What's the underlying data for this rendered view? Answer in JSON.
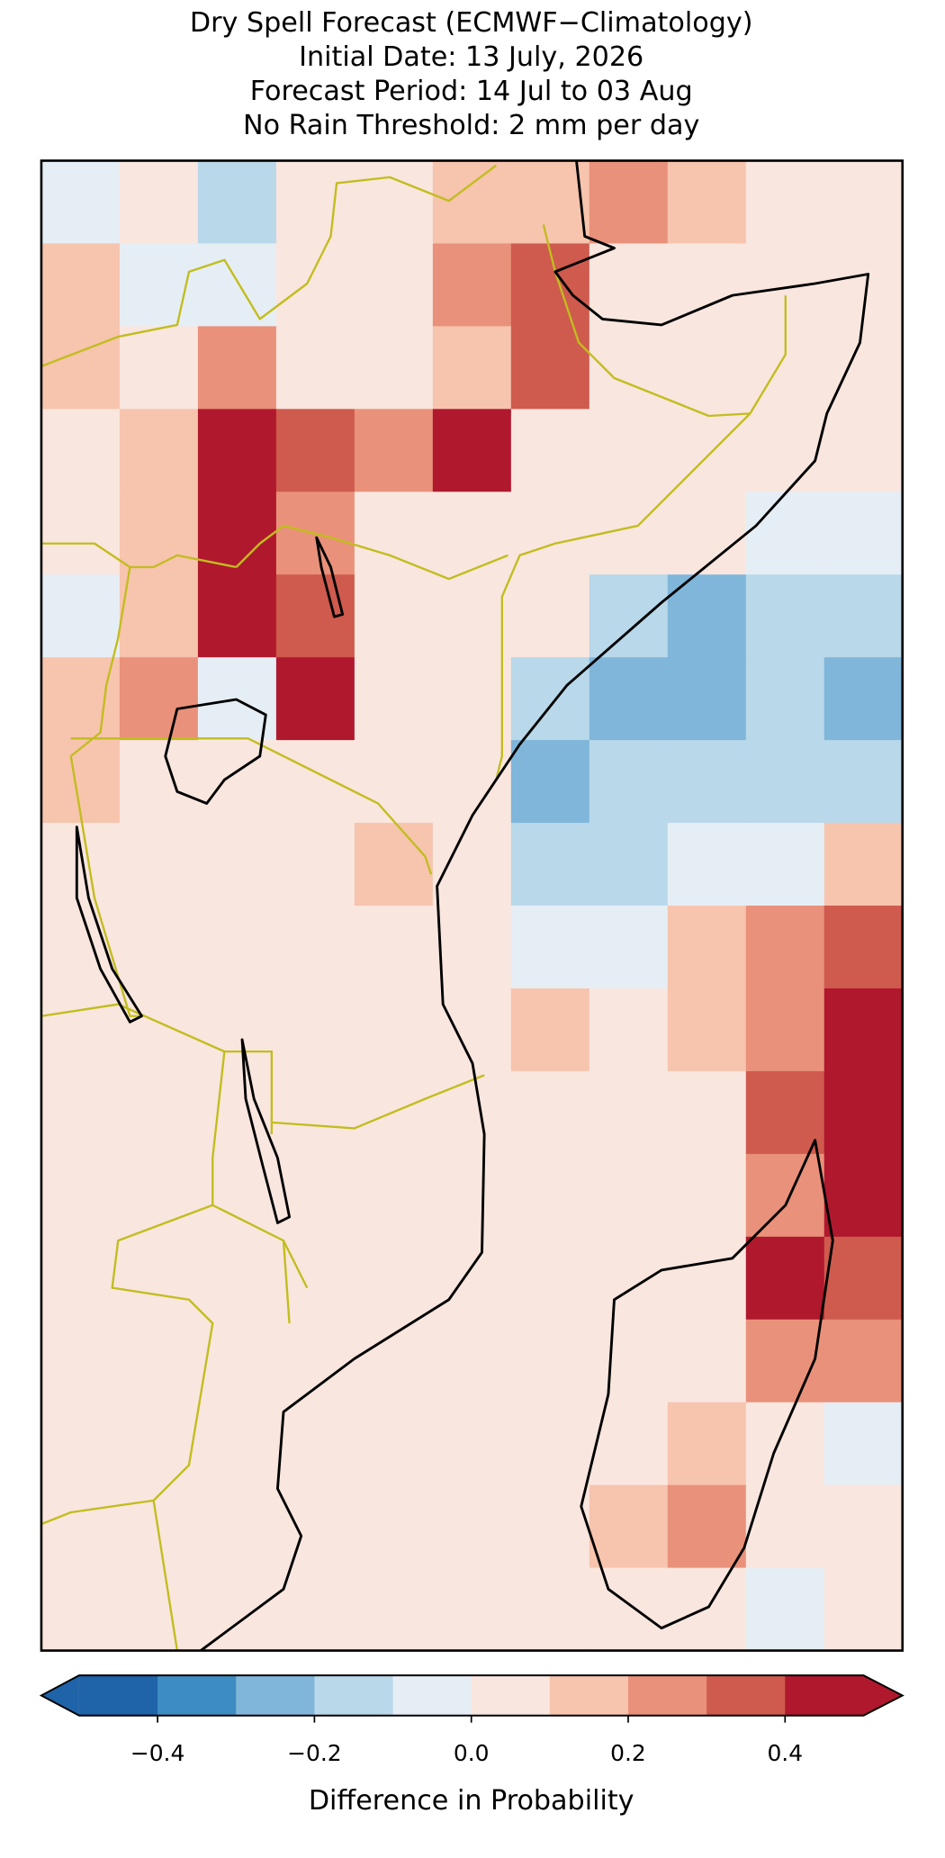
{
  "chart_data": {
    "type": "heatmap",
    "title": [
      "Dry Spell Forecast (ECMWF−Climatology)",
      "Initial Date: 13 July, 2026",
      "Forecast Period: 14 Jul to 03 Aug",
      "No Rain Threshold: 2 mm per day"
    ],
    "values": [
      [
        -0.05,
        0.05,
        -0.15,
        0.05,
        0.05,
        0.15,
        0.15,
        0.25,
        0.15,
        0.05,
        0.05
      ],
      [
        0.15,
        -0.05,
        -0.05,
        0.05,
        0.05,
        0.25,
        0.35,
        0.05,
        0.05,
        0.05,
        0.05
      ],
      [
        0.15,
        0.05,
        0.25,
        0.05,
        0.05,
        0.15,
        0.35,
        0.05,
        0.05,
        0.05,
        0.05
      ],
      [
        0.05,
        0.15,
        0.45,
        0.35,
        0.25,
        0.45,
        0.05,
        0.05,
        0.05,
        0.05,
        0.05
      ],
      [
        0.05,
        0.15,
        0.45,
        0.25,
        0.05,
        0.05,
        0.05,
        0.05,
        0.05,
        -0.05,
        -0.05
      ],
      [
        -0.05,
        0.15,
        0.45,
        0.35,
        0.05,
        0.05,
        0.05,
        -0.15,
        -0.25,
        -0.15,
        -0.15
      ],
      [
        0.15,
        0.25,
        -0.05,
        0.45,
        0.05,
        0.05,
        -0.15,
        -0.25,
        -0.25,
        -0.15,
        -0.25
      ],
      [
        0.15,
        0.05,
        0.05,
        0.05,
        0.05,
        0.05,
        -0.25,
        -0.15,
        -0.15,
        -0.15,
        -0.15
      ],
      [
        0.05,
        0.05,
        0.05,
        0.05,
        0.15,
        0.05,
        -0.15,
        -0.15,
        -0.05,
        -0.05,
        0.15
      ],
      [
        0.05,
        0.05,
        0.05,
        0.05,
        0.05,
        0.05,
        -0.05,
        -0.05,
        0.15,
        0.25,
        0.35
      ],
      [
        0.05,
        0.05,
        0.05,
        0.05,
        0.05,
        0.05,
        0.15,
        0.05,
        0.15,
        0.25,
        0.45
      ],
      [
        0.05,
        0.05,
        0.05,
        0.05,
        0.05,
        0.05,
        0.05,
        0.05,
        0.05,
        0.35,
        0.45
      ],
      [
        0.05,
        0.05,
        0.05,
        0.05,
        0.05,
        0.05,
        0.05,
        0.05,
        0.05,
        0.25,
        0.45
      ],
      [
        0.05,
        0.05,
        0.05,
        0.05,
        0.05,
        0.05,
        0.05,
        0.05,
        0.05,
        0.45,
        0.35
      ],
      [
        0.05,
        0.05,
        0.05,
        0.05,
        0.05,
        0.05,
        0.05,
        0.05,
        0.05,
        0.25,
        0.25
      ],
      [
        0.05,
        0.05,
        0.05,
        0.05,
        0.05,
        0.05,
        0.05,
        0.05,
        0.15,
        0.05,
        -0.05
      ],
      [
        0.05,
        0.05,
        0.05,
        0.05,
        0.05,
        0.05,
        0.05,
        0.15,
        0.25,
        0.05,
        0.05
      ],
      [
        0.05,
        0.05,
        0.05,
        0.05,
        0.05,
        0.05,
        0.05,
        0.05,
        0.05,
        -0.05,
        0.05
      ]
    ],
    "levels": [
      -0.5,
      -0.4,
      -0.3,
      -0.2,
      -0.1,
      0,
      0.1,
      0.2,
      0.3,
      0.4,
      0.5
    ],
    "colors": [
      "#1f63a8",
      "#3d8dc3",
      "#7fb6da",
      "#b9d8ea",
      "#e6eef5",
      "#f9e6df",
      "#f7c4ae",
      "#e9917a",
      "#cf5a4e",
      "#b0182e"
    ],
    "ticks": [
      {
        "value": -0.4,
        "label": "−0.4"
      },
      {
        "value": -0.2,
        "label": "−0.2"
      },
      {
        "value": 0,
        "label": "0.0"
      },
      {
        "value": 0.2,
        "label": "0.2"
      },
      {
        "value": 0.4,
        "label": "0.4"
      }
    ],
    "colorbar_label": "Difference in Probability"
  }
}
